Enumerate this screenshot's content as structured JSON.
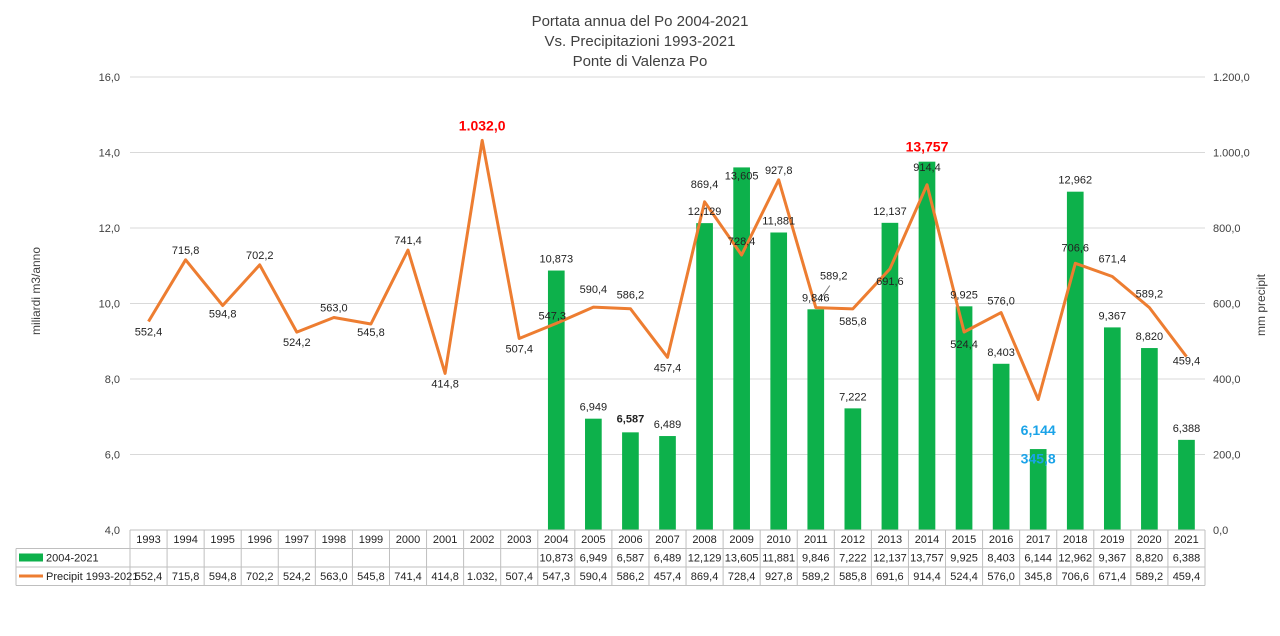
{
  "chart_data": {
    "type": "bar",
    "title": [
      "Portata annua del Po 2004-2021",
      "Vs. Precipitazioni 1993-2021",
      "Ponte di Valenza Po"
    ],
    "categories": [
      "1993",
      "1994",
      "1995",
      "1996",
      "1997",
      "1998",
      "1999",
      "2000",
      "2001",
      "2002",
      "2003",
      "2004",
      "2005",
      "2006",
      "2007",
      "2008",
      "2009",
      "2010",
      "2011",
      "2012",
      "2013",
      "2014",
      "2015",
      "2016",
      "2017",
      "2018",
      "2019",
      "2020",
      "2021"
    ],
    "ylabel": "miliardi m3/anno",
    "ylabel_right": "mm precipit",
    "ylim": [
      4,
      16
    ],
    "ylim_right": [
      0,
      1200
    ],
    "yticks": [
      "4,0",
      "6,0",
      "8,0",
      "10,0",
      "12,0",
      "14,0",
      "16,0"
    ],
    "yticks_right": [
      "0,0",
      "200,0",
      "400,0",
      "600,0",
      "800,0",
      "1.000,0",
      "1.200,0"
    ],
    "legend_placement": "bottom (data table)",
    "grid": true,
    "series": [
      {
        "name": "2004-2021",
        "type": "bar",
        "axis": "left",
        "color": "#0db14b",
        "values": [
          null,
          null,
          null,
          null,
          null,
          null,
          null,
          null,
          null,
          null,
          null,
          10.873,
          6.949,
          6.587,
          6.489,
          12.129,
          13.605,
          11.881,
          9.846,
          7.222,
          12.137,
          13.757,
          9.925,
          8.403,
          6.144,
          12.962,
          9.367,
          8.82,
          6.388
        ],
        "labels": [
          "",
          "",
          "",
          "",
          "",
          "",
          "",
          "",
          "",
          "",
          "",
          "10,873",
          "6,949",
          "6,587",
          "6,489",
          "12,129",
          "13,605",
          "11,881",
          "9,846",
          "7,222",
          "12,137",
          "13,757",
          "9,925",
          "8,403",
          "6,144",
          "12,962",
          "9,367",
          "8,820",
          "6,388"
        ],
        "table_labels": [
          "",
          "",
          "",
          "",
          "",
          "",
          "",
          "",
          "",
          "",
          "",
          "10,873",
          "6,949",
          "6,587",
          "6,489",
          "12,129",
          "13,605",
          "11,881",
          "9,846",
          "7,222",
          "12,137",
          "13,757",
          "9,925",
          "8,403",
          "6,144",
          "12,962",
          "9,367",
          "8,820",
          "6,388"
        ]
      },
      {
        "name": "Precipit 1993-2021",
        "type": "line",
        "axis": "right",
        "color": "#ed7d31",
        "values": [
          552.4,
          715.8,
          594.8,
          702.2,
          524.2,
          563.0,
          545.8,
          741.4,
          414.8,
          1032.0,
          507.4,
          547.3,
          590.4,
          586.2,
          457.4,
          869.4,
          728.4,
          927.8,
          589.2,
          585.8,
          691.6,
          914.4,
          524.4,
          576.0,
          345.8,
          706.6,
          671.4,
          589.2,
          459.4
        ],
        "labels": [
          "552,4",
          "715,8",
          "594,8",
          "702,2",
          "524,2",
          "563,0",
          "545,8",
          "741,4",
          "414,8",
          "1.032,0",
          "507,4",
          "547,3",
          "590,4",
          "586,2",
          "457,4",
          "869,4",
          "728,4",
          "927,8",
          "589,2",
          "585,8",
          "691,6",
          "914,4",
          "524,4",
          "576,0",
          "345,8",
          "706,6",
          "671,4",
          "589,2",
          "459,4"
        ],
        "table_labels": [
          "552,4",
          "715,8",
          "594,8",
          "702,2",
          "524,2",
          "563,0",
          "545,8",
          "741,4",
          "414,8",
          "1.032,",
          "507,4",
          "547,3",
          "590,4",
          "586,2",
          "457,4",
          "869,4",
          "728,4",
          "927,8",
          "589,2",
          "585,8",
          "691,6",
          "914,4",
          "524,4",
          "576,0",
          "345,8",
          "706,6",
          "671,4",
          "589,2",
          "459,4"
        ]
      }
    ],
    "highlights": {
      "red": "#ff0000",
      "blue": "#1aa3e8"
    }
  }
}
